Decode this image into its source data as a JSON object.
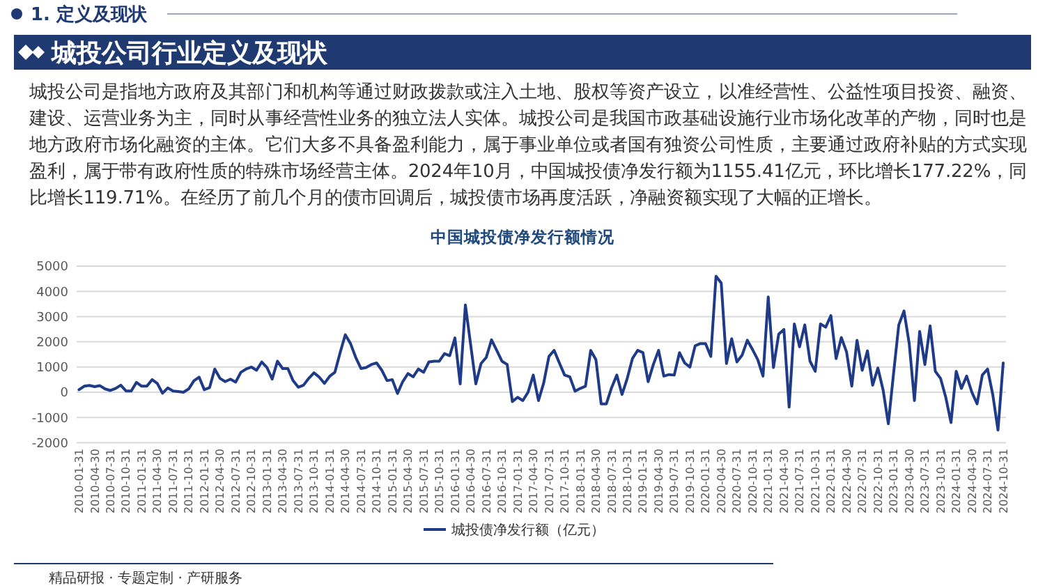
{
  "chart_data": {
    "type": "line",
    "title": "中国城投债净发行额情况",
    "annotations": [
      "1. 定义及现状",
      "城投公司行业定义及现状",
      "城投公司是指地方政府及其部门和机构等通过财政拨款或注入土地、股权等资产设立，以准经营性、公益性项目投资、融资、建设、运营业务为主，同时从事经营性业务的独立法人实体。城投公司是我国市政基础设施行业市场化改革的产物，同时也是地方政府市场化融资的主体。它们大多不具备盈利能力，属于事业单位或者国有独资公司性质，主要通过政府补贴的方式实现盈利，属于带有政府性质的特殊市场经营主体。2024年10月，中国城投债净发行额为1155.41亿元，环比增长177.22%，同比增长119.71%。在经历了前几个月的债市回调后，城投债市场再度活跃，净融资额实现了大幅的正增长。",
      "精品研报 · 专题定制 · 产研服务"
    ],
    "categories": [
      "2010-01-31",
      null,
      null,
      "2010-04-30",
      null,
      null,
      "2010-07-31",
      null,
      null,
      "2010-10-31",
      null,
      null,
      "2011-01-31",
      null,
      null,
      "2011-04-30",
      null,
      null,
      "2011-07-31",
      null,
      null,
      "2011-10-31",
      null,
      null,
      "2012-01-31",
      null,
      null,
      "2012-04-30",
      null,
      null,
      "2012-07-31",
      null,
      null,
      "2012-10-31",
      null,
      null,
      "2013-01-31",
      null,
      null,
      "2013-04-30",
      null,
      null,
      "2013-07-31",
      null,
      null,
      "2013-10-31",
      null,
      null,
      "2014-01-31",
      null,
      null,
      "2014-04-30",
      null,
      null,
      "2014-07-31",
      null,
      null,
      "2014-10-31",
      null,
      null,
      "2015-01-31",
      null,
      null,
      "2015-04-30",
      null,
      null,
      "2015-07-31",
      null,
      null,
      "2015-10-31",
      null,
      null,
      "2016-01-31",
      null,
      null,
      "2016-04-30",
      null,
      null,
      "2016-07-31",
      null,
      null,
      "2016-10-31",
      null,
      null,
      "2017-01-31",
      null,
      null,
      "2017-04-30",
      null,
      null,
      "2017-07-31",
      null,
      null,
      "2017-10-31",
      null,
      null,
      "2018-01-31",
      null,
      null,
      "2018-04-30",
      null,
      null,
      "2018-07-31",
      null,
      null,
      "2018-10-31",
      null,
      null,
      "2019-01-31",
      null,
      null,
      "2019-04-30",
      null,
      null,
      "2019-07-31",
      null,
      null,
      "2019-10-31",
      null,
      null,
      "2020-01-31",
      null,
      null,
      "2020-04-30",
      null,
      null,
      "2020-07-31",
      null,
      null,
      "2020-10-31",
      null,
      null,
      "2021-01-31",
      null,
      null,
      "2021-04-30",
      null,
      null,
      "2021-07-31",
      null,
      null,
      "2021-10-31",
      null,
      null,
      "2022-01-31",
      null,
      null,
      "2022-04-30",
      null,
      null,
      "2022-07-31",
      null,
      null,
      "2022-10-31",
      null,
      null,
      "2023-01-31",
      null,
      null,
      "2023-04-30",
      null,
      null,
      "2023-07-31",
      null,
      null,
      "2023-10-31",
      null,
      null,
      "2024-01-31",
      null,
      null,
      "2024-04-30",
      null,
      null,
      "2024-07-31",
      null,
      null,
      "2024-10-31"
    ],
    "series": [
      {
        "name": "城投债净发行额（亿元）",
        "color": "#1f3b87",
        "values": [
          100,
          240,
          270,
          220,
          260,
          130,
          70,
          150,
          280,
          50,
          50,
          390,
          240,
          240,
          500,
          350,
          -40,
          170,
          50,
          30,
          0,
          130,
          450,
          600,
          100,
          180,
          920,
          550,
          420,
          520,
          400,
          790,
          920,
          1000,
          870,
          1200,
          980,
          520,
          1230,
          940,
          940,
          460,
          200,
          280,
          550,
          770,
          600,
          350,
          630,
          790,
          1560,
          2280,
          1930,
          1380,
          940,
          980,
          1100,
          1160,
          870,
          460,
          500,
          -50,
          420,
          740,
          610,
          920,
          790,
          1200,
          1230,
          1230,
          1530,
          1450,
          2150,
          330,
          3460,
          1900,
          330,
          1140,
          1380,
          2080,
          1660,
          1230,
          1100,
          -370,
          -200,
          -330,
          0,
          680,
          -330,
          370,
          1420,
          1660,
          1160,
          680,
          610,
          40,
          150,
          240,
          1660,
          1290,
          -460,
          -460,
          180,
          680,
          -90,
          550,
          1340,
          1660,
          1570,
          420,
          1100,
          1660,
          640,
          700,
          680,
          1570,
          1160,
          1000,
          1840,
          1930,
          1930,
          1420,
          4600,
          4330,
          1140,
          2120,
          1200,
          1470,
          2060,
          1690,
          1290,
          640,
          3780,
          980,
          2300,
          2490,
          -590,
          2710,
          1800,
          2670,
          1230,
          830,
          2710,
          2580,
          3040,
          1330,
          2170,
          1600,
          240,
          2060,
          870,
          1640,
          280,
          960,
          90,
          -1250,
          740,
          2670,
          3220,
          1930,
          -330,
          2410,
          1100,
          2630,
          830,
          550,
          -200,
          -1200,
          830,
          150,
          640,
          0,
          -460,
          680,
          920,
          -90,
          -1500,
          1160
        ]
      }
    ],
    "ylim": [
      -2000,
      5000
    ],
    "yticks": [
      -2000,
      -1000,
      0,
      1000,
      2000,
      3000,
      4000,
      5000
    ],
    "grid": "y",
    "legend": "bottom"
  }
}
